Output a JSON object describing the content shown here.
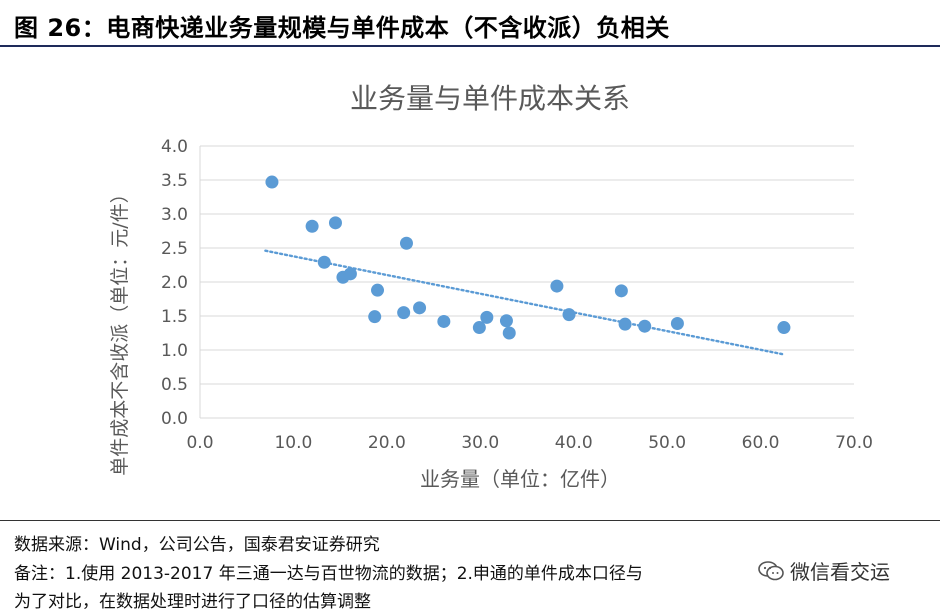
{
  "figure": {
    "title": "图 26：电商快递业务量规模与单件成本（不含收派）负相关"
  },
  "footer": {
    "source": "数据来源：Wind，公司公告，国泰君安证券研究",
    "note_line1": "备注：1.使用 2013-2017 年三通一达与百世物流的数据；2.申通的单件成本口径与",
    "note_line2": "为了对比，在数据处理时进行了口径的估算调整",
    "watermark": "微信看交运"
  },
  "colors": {
    "marker": "#5b9bd5",
    "trendline": "#5b9bd5",
    "grid": "#d9d9d9",
    "text": "#595959"
  },
  "chart_data": {
    "type": "scatter",
    "title": "业务量与单件成本关系",
    "xlabel": "业务量（单位：亿件）",
    "ylabel": "单件成本不含收派（单位：元/件）",
    "xlim": [
      0,
      70
    ],
    "ylim": [
      0,
      4
    ],
    "xticks": [
      "0.0",
      "10.0",
      "20.0",
      "30.0",
      "40.0",
      "50.0",
      "60.0",
      "70.0"
    ],
    "yticks": [
      "0.0",
      "0.5",
      "1.0",
      "1.5",
      "2.0",
      "2.5",
      "3.0",
      "3.5",
      "4.0"
    ],
    "grid": "horizontal",
    "points": [
      {
        "x": 7.7,
        "y": 3.47
      },
      {
        "x": 12.0,
        "y": 2.82
      },
      {
        "x": 13.3,
        "y": 2.29
      },
      {
        "x": 14.5,
        "y": 2.87
      },
      {
        "x": 15.3,
        "y": 2.07
      },
      {
        "x": 16.1,
        "y": 2.12
      },
      {
        "x": 18.7,
        "y": 1.49
      },
      {
        "x": 19.0,
        "y": 1.88
      },
      {
        "x": 21.8,
        "y": 1.55
      },
      {
        "x": 22.1,
        "y": 2.57
      },
      {
        "x": 23.5,
        "y": 1.62
      },
      {
        "x": 26.1,
        "y": 1.42
      },
      {
        "x": 29.9,
        "y": 1.33
      },
      {
        "x": 30.7,
        "y": 1.48
      },
      {
        "x": 32.8,
        "y": 1.43
      },
      {
        "x": 33.1,
        "y": 1.25
      },
      {
        "x": 38.2,
        "y": 1.94
      },
      {
        "x": 39.5,
        "y": 1.52
      },
      {
        "x": 45.1,
        "y": 1.87
      },
      {
        "x": 45.5,
        "y": 1.38
      },
      {
        "x": 47.6,
        "y": 1.35
      },
      {
        "x": 51.1,
        "y": 1.39
      },
      {
        "x": 62.5,
        "y": 1.33
      }
    ],
    "trendline": {
      "style": "dotted",
      "from": {
        "x": 7.0,
        "y": 2.46
      },
      "to": {
        "x": 62.3,
        "y": 0.94
      }
    }
  }
}
